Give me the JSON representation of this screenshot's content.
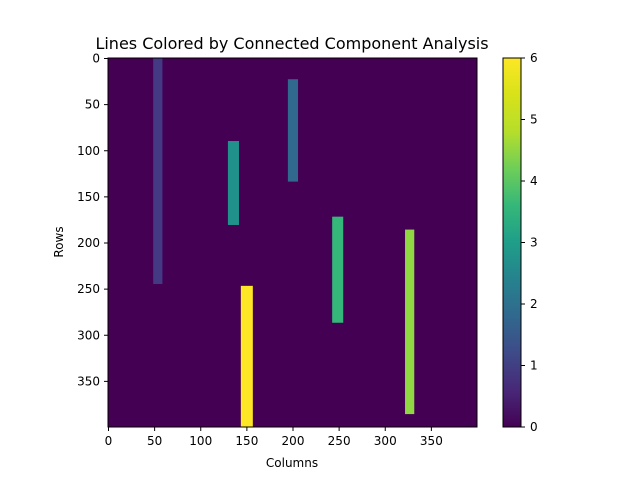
{
  "chart_data": {
    "type": "heatmap",
    "title": "Lines Colored by Connected Component Analysis",
    "xlabel": "Columns",
    "ylabel": "Rows",
    "xlim": [
      0,
      400
    ],
    "ylim": [
      400,
      0
    ],
    "x_ticks": [
      0,
      50,
      100,
      150,
      200,
      250,
      300,
      350
    ],
    "y_ticks": [
      0,
      50,
      100,
      150,
      200,
      250,
      300,
      350
    ],
    "background_value": 0,
    "colormap": "viridis",
    "colorbar": {
      "min": 0,
      "max": 6,
      "ticks": [
        0,
        1,
        2,
        3,
        4,
        5,
        6
      ]
    },
    "components": [
      {
        "label": 1,
        "x_start": 49,
        "x_end": 59,
        "y_start": 0,
        "y_end": 245,
        "color": "#443983"
      },
      {
        "label": 2,
        "x_start": 195,
        "x_end": 206,
        "y_start": 23,
        "y_end": 134,
        "color": "#31688e"
      },
      {
        "label": 3,
        "x_start": 130,
        "x_end": 142,
        "y_start": 90,
        "y_end": 181,
        "color": "#21918c"
      },
      {
        "label": 4,
        "x_start": 243,
        "x_end": 255,
        "y_start": 172,
        "y_end": 287,
        "color": "#35b779"
      },
      {
        "label": 5,
        "x_start": 322,
        "x_end": 332,
        "y_start": 186,
        "y_end": 386,
        "color": "#90d743"
      },
      {
        "label": 6,
        "x_start": 144,
        "x_end": 157,
        "y_start": 247,
        "y_end": 400,
        "color": "#fde725"
      }
    ]
  }
}
